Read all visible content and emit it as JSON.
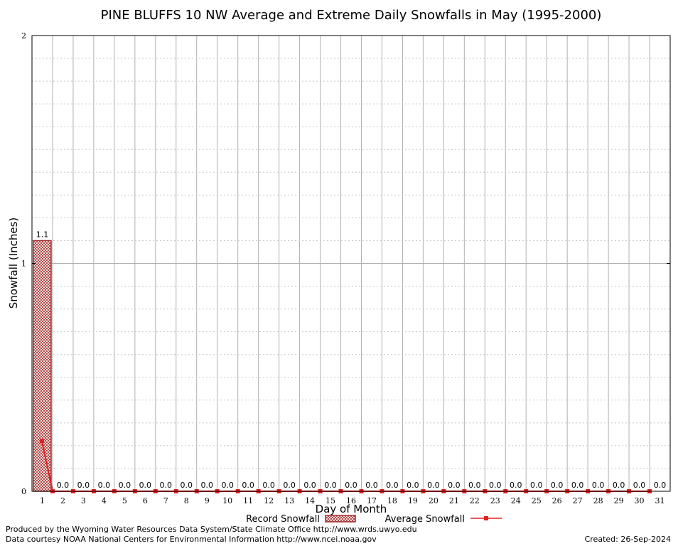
{
  "chart_data": {
    "type": "bar",
    "title": "PINE BLUFFS 10 NW Average and Extreme Daily Snowfalls in May (1995-2000)",
    "xlabel": "Day of Month",
    "ylabel": "Snowfall (Inches)",
    "ylim": [
      0,
      2
    ],
    "yticks": [
      0,
      1,
      2
    ],
    "grid": true,
    "categories": [
      "1",
      "2",
      "3",
      "4",
      "5",
      "6",
      "7",
      "8",
      "9",
      "10",
      "11",
      "12",
      "13",
      "14",
      "15",
      "16",
      "17",
      "18",
      "19",
      "20",
      "21",
      "22",
      "23",
      "24",
      "25",
      "26",
      "27",
      "28",
      "29",
      "30",
      "31"
    ],
    "series": [
      {
        "name": "Record Snowfall",
        "kind": "bar",
        "color": "#a52a2a",
        "values": [
          1.1,
          0,
          0,
          0,
          0,
          0,
          0,
          0,
          0,
          0,
          0,
          0,
          0,
          0,
          0,
          0,
          0,
          0,
          0,
          0,
          0,
          0,
          0,
          0,
          0,
          0,
          0,
          0,
          0,
          0,
          0
        ],
        "labels": [
          "1.1",
          "0.0",
          "0.0",
          "0.0",
          "0.0",
          "0.0",
          "0.0",
          "0.0",
          "0.0",
          "0.0",
          "0.0",
          "0.0",
          "0.0",
          "0.0",
          "0.0",
          "0.0",
          "0.0",
          "0.0",
          "0.0",
          "0.0",
          "0.0",
          "0.0",
          "0.0",
          "0.0",
          "0.0",
          "0.0",
          "0.0",
          "0.0",
          "0.0",
          "0.0",
          "0.0"
        ]
      },
      {
        "name": "Average Snowfall",
        "kind": "line",
        "color": "#e02020",
        "values": [
          0.22,
          0,
          0,
          0,
          0,
          0,
          0,
          0,
          0,
          0,
          0,
          0,
          0,
          0,
          0,
          0,
          0,
          0,
          0,
          0,
          0,
          0,
          0,
          0,
          0,
          0,
          0,
          0,
          0,
          0,
          0
        ]
      }
    ],
    "legend_position": "bottom"
  },
  "footer": {
    "produced_by": "Produced by the Wyoming Water Resources Data System/State Climate Office http://www.wrds.uwyo.edu",
    "data_courtesy": "Data courtesy NOAA National Centers for Environmental Information http://www.ncei.noaa.gov",
    "created": "Created:  26-Sep-2024"
  }
}
